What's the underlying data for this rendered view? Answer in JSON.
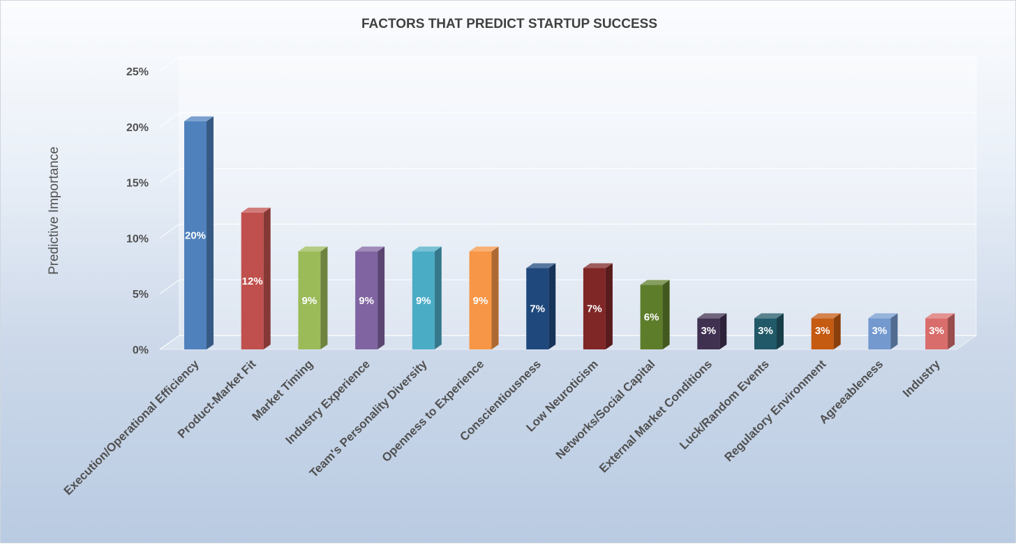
{
  "chart_data": {
    "type": "bar",
    "title": "FACTORS THAT PREDICT STARTUP SUCCESS",
    "xlabel": "",
    "ylabel": "Predictive Importance",
    "ylim": [
      0,
      25
    ],
    "yticks": [
      0,
      5,
      10,
      15,
      20,
      25
    ],
    "ytick_labels": [
      "0%",
      "5%",
      "10%",
      "15%",
      "20%",
      "25%"
    ],
    "grid": true,
    "legend": "none",
    "style": "3d-column",
    "categories": [
      "Execution/Operational Efficiency",
      "Product-Market Fit",
      "Market Timing",
      "Industry Experience",
      "Team's Personality Diversity",
      "Openness to Experience",
      "Conscientiousness",
      "Low Neuroticism",
      "Networks/Social Capital",
      "External Market Conditions",
      "Luck/Random Events",
      "Regulatory Environment",
      "Agreeableness",
      "Industry"
    ],
    "values": [
      20.5,
      12.3,
      8.8,
      8.8,
      8.8,
      8.8,
      7.3,
      7.3,
      5.8,
      2.8,
      2.8,
      2.8,
      2.8,
      2.8
    ],
    "data_labels": [
      "20%",
      "12%",
      "9%",
      "9%",
      "9%",
      "9%",
      "7%",
      "7%",
      "6%",
      "3%",
      "3%",
      "3%",
      "3%",
      "3%"
    ],
    "colors": [
      "#4f81bd",
      "#c0504d",
      "#9bbb59",
      "#8064a2",
      "#4bacc6",
      "#f79646",
      "#1f497d",
      "#7f2626",
      "#5e7d2b",
      "#403151",
      "#215968",
      "#c55a11",
      "#7399cf",
      "#d96d6b"
    ]
  }
}
